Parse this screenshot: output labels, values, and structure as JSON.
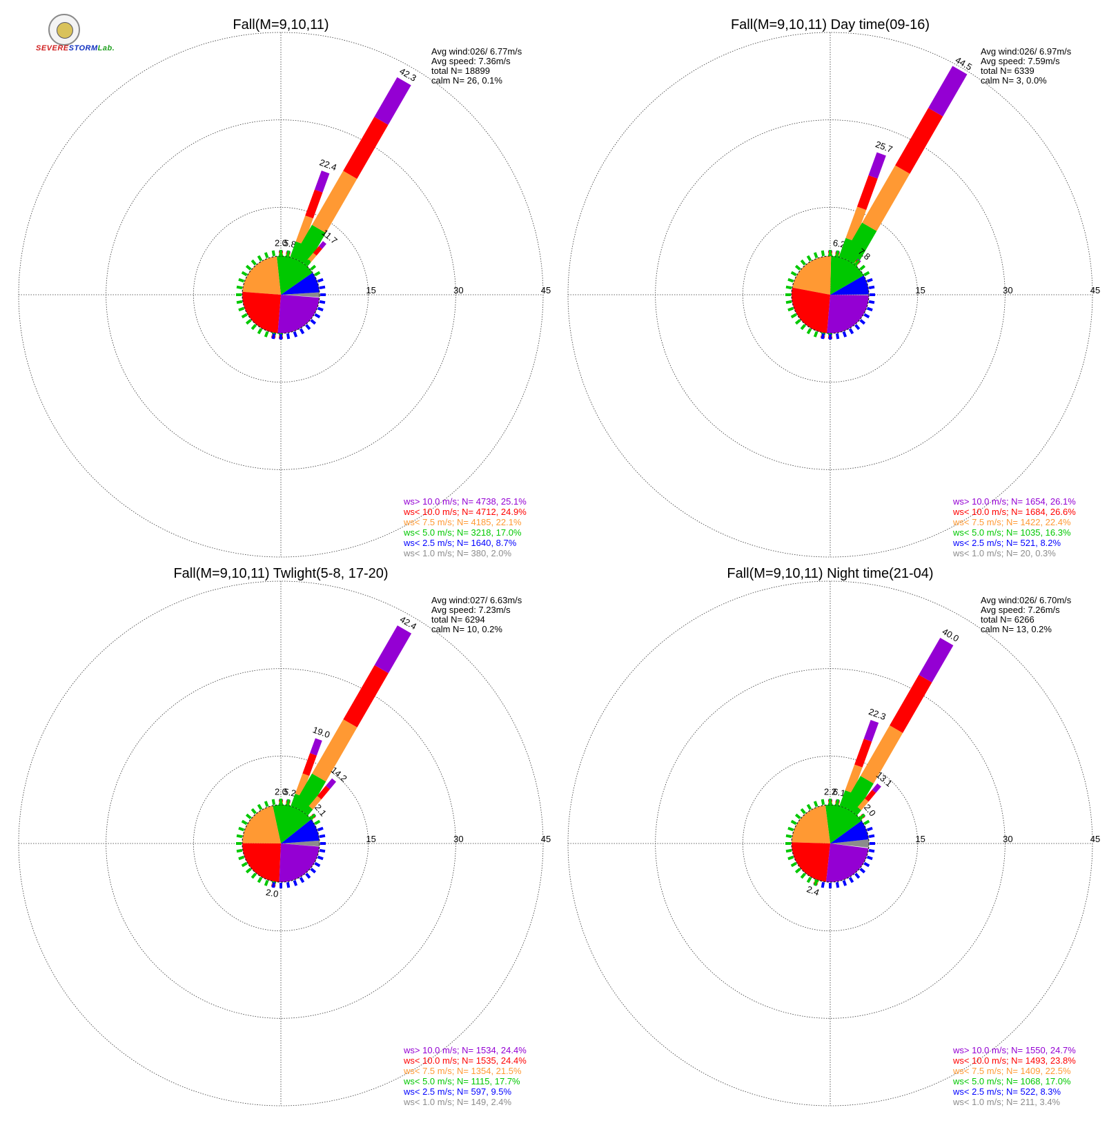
{
  "logo": {
    "text_1": "SEVERE",
    "text_2": "STORM",
    "text_3": "Lab."
  },
  "legend_labels": [
    "ws> 10.0 m/s; N=",
    "ws< 10.0 m/s; N=",
    "ws<  7.5 m/s; N=",
    "ws<  5.0 m/s; N=",
    "ws<  2.5 m/s; N=",
    "ws<  1.0 m/s; N="
  ],
  "colors": [
    "#9400d3",
    "#ff0000",
    "#ff9933",
    "#00c800",
    "#0000ff",
    "#8c8c8c"
  ],
  "ring_labels": [
    "15",
    "30",
    "45"
  ],
  "chart_data": [
    {
      "type": "wind_rose",
      "title": "Fall(M=9,10,11)",
      "info": [
        "Avg wind:026/ 6.77m/s",
        "Avg speed: 7.36m/s",
        "total N=      18899",
        "calm N=     26,   0.1%"
      ],
      "legend_values": [
        "4738, 25.1%",
        "4712, 24.9%",
        "4185, 22.1%",
        "3218, 17.0%",
        "1640,  8.7%",
        " 380,  2.0%"
      ],
      "rmax": 45,
      "pie_percent": [
        25.1,
        24.9,
        22.1,
        17.0,
        8.7,
        2.0
      ],
      "petals": [
        {
          "dir": 0,
          "total": 2.0,
          "label": "2.0"
        },
        {
          "dir": 10,
          "total": 5.8,
          "label": "5.8"
        },
        {
          "dir": 20,
          "total": 22.4,
          "label": "22.4"
        },
        {
          "dir": 30,
          "total": 42.3,
          "label": "42.3"
        },
        {
          "dir": 40,
          "total": 11.7,
          "label": "11.7"
        },
        {
          "dir": 190,
          "total": 1.9,
          "label": ""
        },
        {
          "dir": 180,
          "total": 1.7,
          "label": ""
        }
      ]
    },
    {
      "type": "wind_rose",
      "title": "Fall(M=9,10,11) Day time(09-16)",
      "info": [
        "Avg wind:026/ 6.97m/s",
        "Avg speed: 7.59m/s",
        "total N=        6339",
        "calm N=       3,   0.0%"
      ],
      "legend_values": [
        "1654, 26.1%",
        "1684, 26.6%",
        "1422, 22.4%",
        "1035, 16.3%",
        " 521,  8.2%",
        "  20,  0.3%"
      ],
      "rmax": 45,
      "pie_percent": [
        26.1,
        26.6,
        22.4,
        16.3,
        8.2,
        0.3
      ],
      "petals": [
        {
          "dir": 10,
          "total": 6.2,
          "label": "6.2"
        },
        {
          "dir": 20,
          "total": 25.7,
          "label": "25.7"
        },
        {
          "dir": 30,
          "total": 44.5,
          "label": "44.5"
        },
        {
          "dir": 40,
          "total": 7.8,
          "label": "7.8"
        },
        {
          "dir": 0,
          "total": 1.8,
          "label": ""
        },
        {
          "dir": 190,
          "total": 1.8,
          "label": ""
        },
        {
          "dir": 180,
          "total": 1.6,
          "label": ""
        }
      ]
    },
    {
      "type": "wind_rose",
      "title": "Fall(M=9,10,11) Twlight(5-8, 17-20)",
      "info": [
        "Avg wind:027/ 6.63m/s",
        "Avg speed: 7.23m/s",
        "total N=        6294",
        "calm N=     10,   0.2%"
      ],
      "legend_values": [
        "1534, 24.4%",
        "1535, 24.4%",
        "1354, 21.5%",
        "1115, 17.7%",
        " 597,  9.5%",
        " 149,  2.4%"
      ],
      "rmax": 45,
      "pie_percent": [
        24.4,
        24.4,
        21.5,
        17.7,
        9.5,
        2.4
      ],
      "petals": [
        {
          "dir": 0,
          "total": 2.0,
          "label": "2.0"
        },
        {
          "dir": 10,
          "total": 5.2,
          "label": "5.2"
        },
        {
          "dir": 20,
          "total": 19.0,
          "label": "19.0"
        },
        {
          "dir": 30,
          "total": 42.4,
          "label": "42.4"
        },
        {
          "dir": 40,
          "total": 14.2,
          "label": "14.2"
        },
        {
          "dir": 50,
          "total": 2.1,
          "label": "2.1"
        },
        {
          "dir": 190,
          "total": 2.0,
          "label": "2.0"
        }
      ]
    },
    {
      "type": "wind_rose",
      "title": "Fall(M=9,10,11) Night time(21-04)",
      "info": [
        "Avg wind:026/ 6.70m/s",
        "Avg speed: 7.26m/s",
        "total N=        6266",
        "calm N=     13,   0.2%"
      ],
      "legend_values": [
        "1550, 24.7%",
        "1493, 23.8%",
        "1409, 22.5%",
        "1068, 17.0%",
        " 522,  8.3%",
        " 211,  3.4%"
      ],
      "rmax": 45,
      "pie_percent": [
        24.7,
        23.8,
        22.5,
        17.0,
        8.3,
        3.4
      ],
      "petals": [
        {
          "dir": 0,
          "total": 2.2,
          "label": "2.2"
        },
        {
          "dir": 10,
          "total": 6.1,
          "label": "6.1"
        },
        {
          "dir": 20,
          "total": 22.3,
          "label": "22.3"
        },
        {
          "dir": 30,
          "total": 40.0,
          "label": "40.0"
        },
        {
          "dir": 40,
          "total": 13.1,
          "label": "13.1"
        },
        {
          "dir": 50,
          "total": 2.0,
          "label": "2.0"
        },
        {
          "dir": 200,
          "total": 2.4,
          "label": "2.4"
        }
      ]
    }
  ]
}
